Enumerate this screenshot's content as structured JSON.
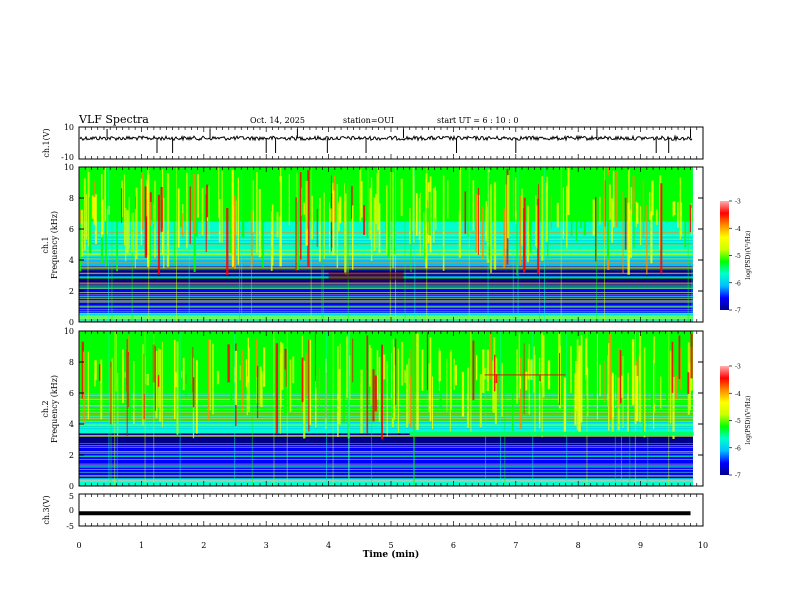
{
  "header": {
    "title": "VLF Spectra",
    "date": "Oct. 14, 2025",
    "station": "station=OUI",
    "start_ut": "start UT =  6 : 10 : 0"
  },
  "colors": {
    "colormap": [
      "#00008b",
      "#0000ff",
      "#00bfff",
      "#00ffcc",
      "#00ff00",
      "#ccff00",
      "#ffff00",
      "#ff8c00",
      "#ff0000",
      "#ffb0b0"
    ],
    "trace": "#000000"
  },
  "chart_data": [
    {
      "type": "line",
      "name": "ch1-waveform",
      "ylabel": "ch.1(V)",
      "ylim": [
        -10,
        10
      ],
      "yticks": [
        "10",
        "-10"
      ],
      "baseline": 3,
      "spikes_min": [
        0.45,
        1.25,
        1.5,
        2.1,
        3.0,
        3.15,
        3.5,
        3.98,
        4.6,
        5.2,
        6.05,
        7.0,
        8.3,
        9.25,
        9.45,
        9.8
      ]
    },
    {
      "type": "heatmap",
      "name": "ch1-spectrogram",
      "ylabel": "ch.1\nFrequency (kHz)",
      "ylim": [
        0,
        10
      ],
      "yticks": [
        "0",
        "2",
        "4",
        "6",
        "8",
        "10"
      ],
      "colorbar": {
        "label": "log(PSD)(V²/Hz)",
        "range": [
          -7,
          -3
        ],
        "ticks": [
          "-3",
          "-4",
          "-5",
          "-6",
          "-7"
        ]
      },
      "xlim": [
        0,
        10
      ]
    },
    {
      "type": "heatmap",
      "name": "ch2-spectrogram",
      "ylabel": "ch.2\nFrequency (kHz)",
      "ylim": [
        0,
        10
      ],
      "yticks": [
        "0",
        "2",
        "4",
        "6",
        "8",
        "10"
      ],
      "colorbar": {
        "label": "log(PSD)(V²/Hz)",
        "range": [
          -7,
          -3
        ],
        "ticks": [
          "-3",
          "-4",
          "-5",
          "-6",
          "-7"
        ]
      },
      "xlim": [
        0,
        10
      ]
    },
    {
      "type": "line",
      "name": "ch3-waveform",
      "ylabel": "ch.3(V)",
      "ylim": [
        -5,
        5
      ],
      "yticks": [
        "5",
        "0",
        "-5"
      ],
      "values": [
        -1,
        -1
      ],
      "x": [
        0,
        9.8
      ]
    }
  ],
  "xaxis": {
    "label": "Time (min)",
    "xlim": [
      0,
      10
    ],
    "ticks": [
      "0",
      "1",
      "2",
      "3",
      "4",
      "5",
      "6",
      "7",
      "8",
      "9",
      "10"
    ]
  }
}
